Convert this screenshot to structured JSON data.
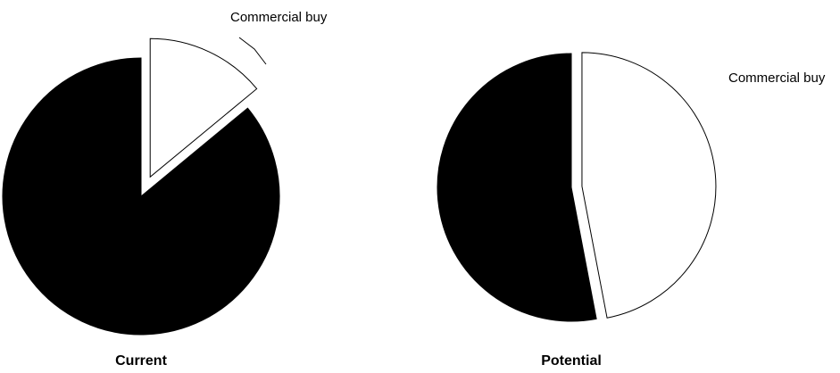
{
  "chart_data": [
    {
      "type": "pie",
      "title": "Current",
      "categories": [
        "Commercial buy",
        null
      ],
      "values": [
        14,
        86
      ],
      "colors": [
        "#ffffff",
        "#000000"
      ],
      "explode": [
        true,
        false
      ]
    },
    {
      "type": "pie",
      "title": "Potential",
      "categories": [
        "Commercial buy",
        null
      ],
      "values": [
        47,
        53
      ],
      "colors": [
        "#ffffff",
        "#000000"
      ],
      "explode": [
        true,
        false
      ]
    }
  ]
}
